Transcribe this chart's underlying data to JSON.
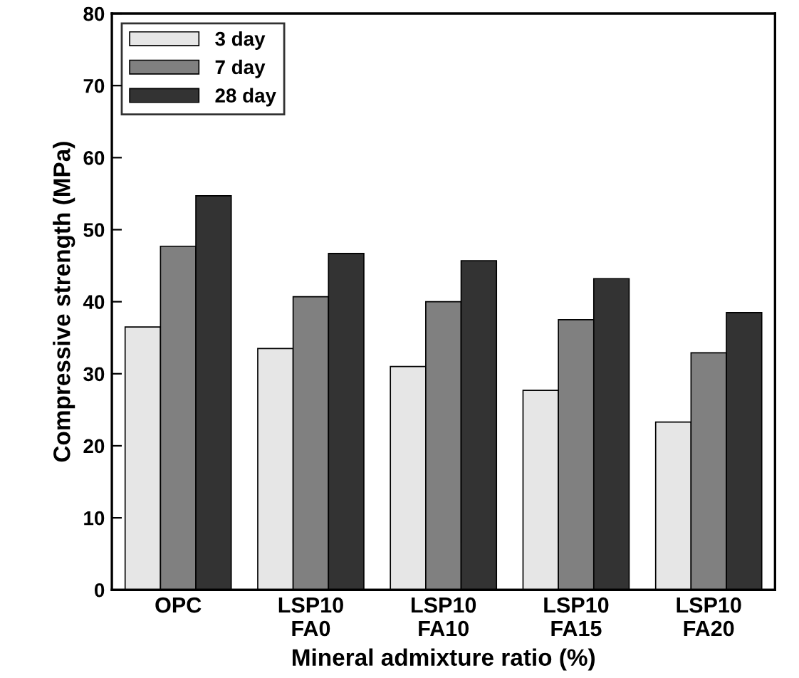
{
  "chart_data": {
    "type": "bar",
    "xlabel": "Mineral admixture ratio (%)",
    "ylabel": "Compressive strength (MPa)",
    "categories": [
      "OPC",
      "LSP10\nFA0",
      "LSP10\nFA10",
      "LSP10\nFA15",
      "LSP10\nFA20"
    ],
    "series": [
      {
        "name": "3 day",
        "color": "#e6e6e6",
        "values": [
          36.5,
          33.5,
          31,
          27.7,
          23.3
        ]
      },
      {
        "name": "7 day",
        "color": "#808080",
        "values": [
          47.7,
          40.7,
          40,
          37.5,
          32.9
        ]
      },
      {
        "name": "28 day",
        "color": "#333333",
        "values": [
          54.7,
          46.7,
          45.7,
          43.2,
          38.5
        ]
      }
    ],
    "ylim": [
      0,
      80
    ],
    "yticks": [
      0,
      10,
      20,
      30,
      40,
      50,
      60,
      70,
      80
    ],
    "grid": false,
    "legend": "top left"
  }
}
